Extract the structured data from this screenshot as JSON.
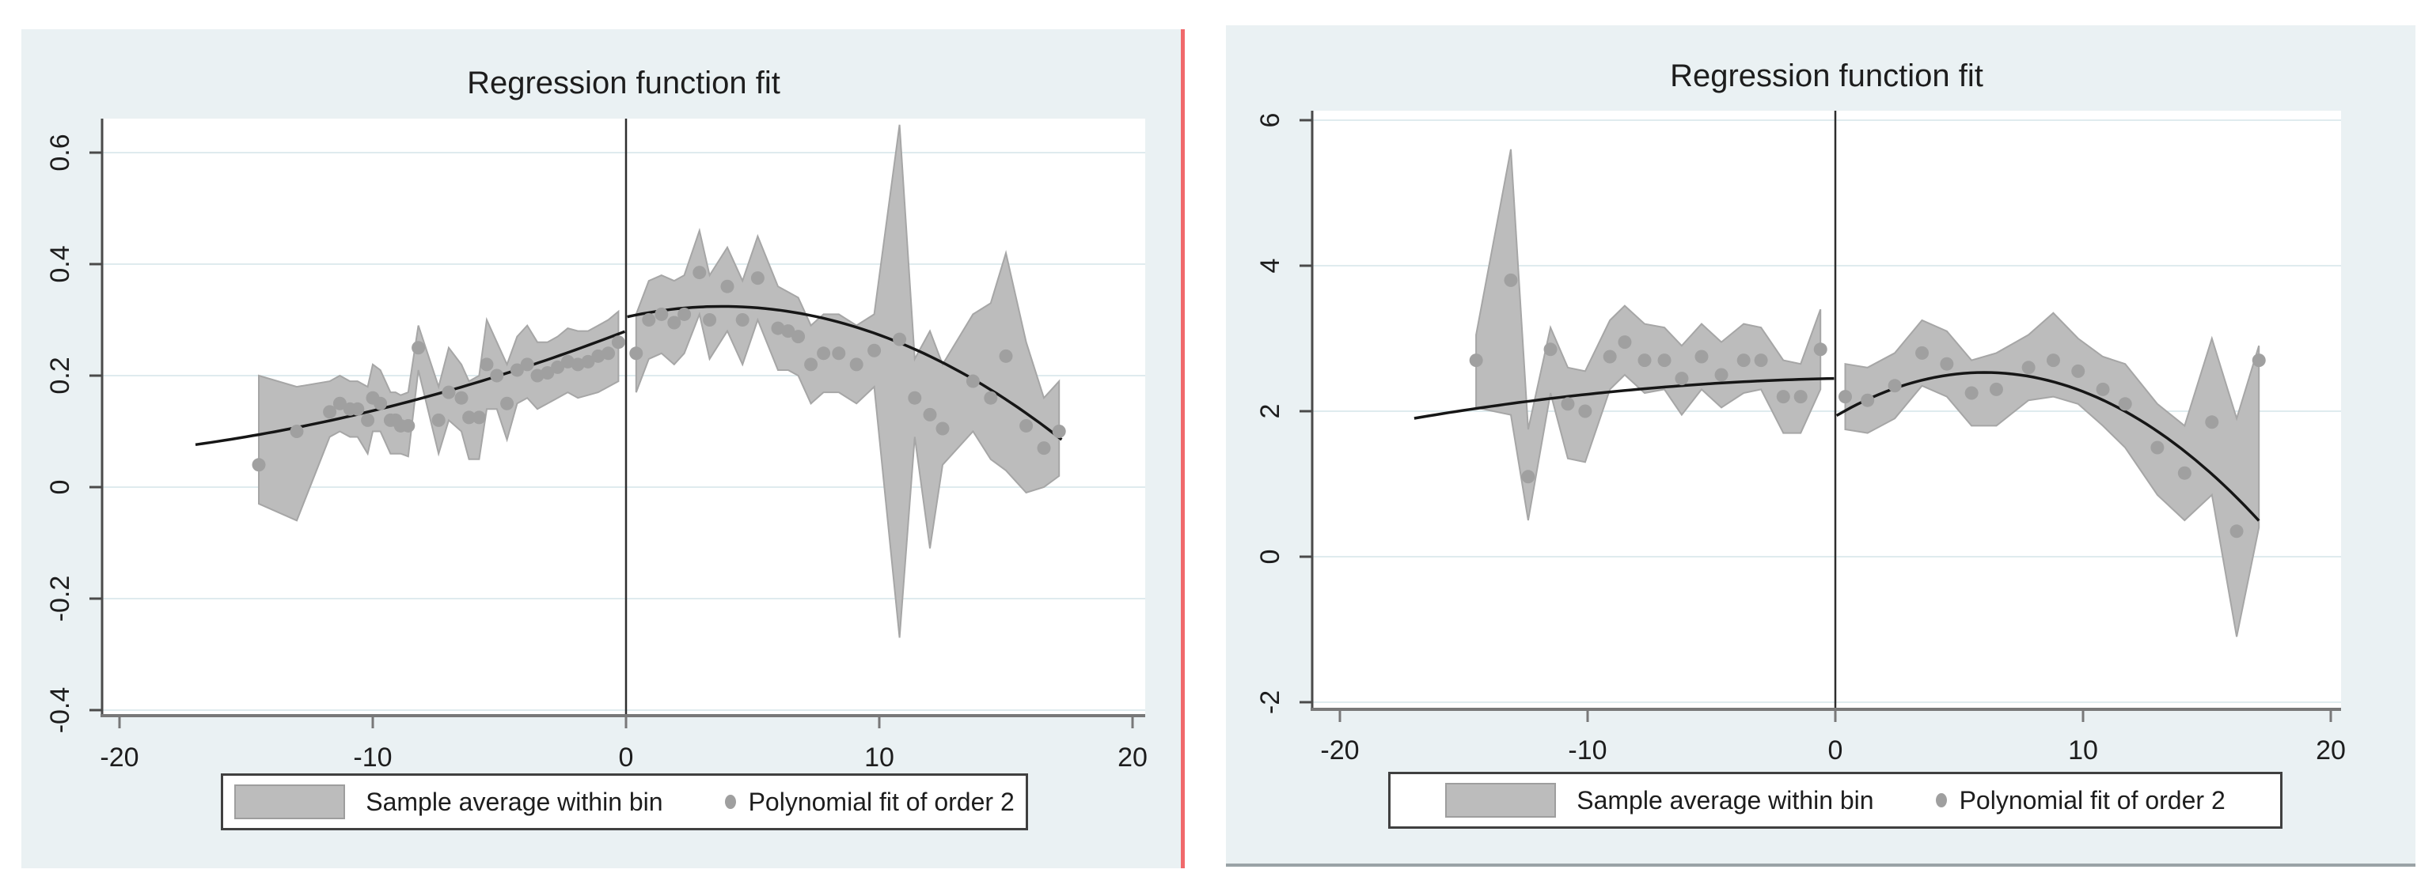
{
  "page": {
    "background": "#ffffff",
    "divider_color": "#f0696b"
  },
  "chart_data": [
    {
      "type": "scatter",
      "variant": "rd-plot-binned-means-with-ci-band-and-quadratic-fit",
      "title": "Regression function fit",
      "xlabel": "",
      "ylabel": "",
      "x_ticks": [
        -20,
        -10,
        0,
        10,
        20
      ],
      "y_ticks": [
        -0.4,
        -0.2,
        0,
        0.2,
        0.4,
        0.6
      ],
      "y_tick_labels": [
        "-0.4",
        "-0.2",
        "0",
        "0.2",
        "0.4",
        "0.6"
      ],
      "xlim": [
        -20.7,
        20.5
      ],
      "ylim": [
        -0.41,
        0.66
      ],
      "cutoff_x": 0,
      "grid": "horizontal",
      "legend_position": "bottom-center",
      "legend": [
        {
          "marker": "area",
          "label": "Sample average within bin"
        },
        {
          "marker": "dot",
          "label": "Polynomial fit of order 2"
        }
      ],
      "colors": {
        "figure_bg": "#eaf1f3",
        "plot_bg": "#ffffff",
        "grid": "#dfebee",
        "band": "#bcbcbc",
        "band_edge": "#a6a6a6",
        "dot": "#a0a0a0",
        "curve": "#161616",
        "cutoff_line": "#2e2e2e",
        "y_axis": "#4a4a4a",
        "x_axis": "#787878",
        "text": "#1d1d1d"
      },
      "bins_left": [
        [
          -14.5,
          0.04,
          -0.03,
          0.2
        ],
        [
          -13.0,
          0.1,
          -0.06,
          0.18
        ],
        [
          -11.7,
          0.135,
          0.09,
          0.19
        ],
        [
          -11.3,
          0.15,
          0.1,
          0.2
        ],
        [
          -10.9,
          0.14,
          0.09,
          0.19
        ],
        [
          -10.6,
          0.14,
          0.09,
          0.19
        ],
        [
          -10.2,
          0.12,
          0.06,
          0.18
        ],
        [
          -10.0,
          0.16,
          0.1,
          0.22
        ],
        [
          -9.7,
          0.15,
          0.1,
          0.21
        ],
        [
          -9.3,
          0.12,
          0.06,
          0.17
        ],
        [
          -9.1,
          0.12,
          0.06,
          0.17
        ],
        [
          -8.9,
          0.11,
          0.06,
          0.165
        ],
        [
          -8.6,
          0.11,
          0.055,
          0.17
        ],
        [
          -8.2,
          0.25,
          0.21,
          0.29
        ],
        [
          -7.4,
          0.12,
          0.06,
          0.18
        ],
        [
          -7.0,
          0.17,
          0.12,
          0.25
        ],
        [
          -6.5,
          0.16,
          0.1,
          0.22
        ],
        [
          -6.2,
          0.125,
          0.05,
          0.19
        ],
        [
          -5.8,
          0.125,
          0.05,
          0.2
        ],
        [
          -5.5,
          0.22,
          0.14,
          0.3
        ],
        [
          -5.1,
          0.2,
          0.14,
          0.26
        ],
        [
          -4.7,
          0.15,
          0.085,
          0.22
        ],
        [
          -4.3,
          0.21,
          0.15,
          0.27
        ],
        [
          -3.9,
          0.22,
          0.16,
          0.29
        ],
        [
          -3.5,
          0.2,
          0.14,
          0.26
        ],
        [
          -3.1,
          0.205,
          0.15,
          0.26
        ],
        [
          -2.7,
          0.215,
          0.16,
          0.27
        ],
        [
          -2.3,
          0.225,
          0.17,
          0.285
        ],
        [
          -1.9,
          0.22,
          0.16,
          0.28
        ],
        [
          -1.5,
          0.225,
          0.165,
          0.28
        ],
        [
          -1.1,
          0.235,
          0.17,
          0.29
        ],
        [
          -0.7,
          0.24,
          0.18,
          0.3
        ],
        [
          -0.3,
          0.26,
          0.19,
          0.315
        ]
      ],
      "bins_right": [
        [
          0.4,
          0.24,
          0.17,
          0.31
        ],
        [
          0.9,
          0.3,
          0.23,
          0.37
        ],
        [
          1.4,
          0.31,
          0.24,
          0.38
        ],
        [
          1.9,
          0.295,
          0.22,
          0.37
        ],
        [
          2.3,
          0.31,
          0.24,
          0.38
        ],
        [
          2.9,
          0.385,
          0.31,
          0.46
        ],
        [
          3.3,
          0.3,
          0.23,
          0.38
        ],
        [
          4.0,
          0.36,
          0.28,
          0.43
        ],
        [
          4.6,
          0.3,
          0.22,
          0.37
        ],
        [
          5.2,
          0.375,
          0.3,
          0.45
        ],
        [
          6.0,
          0.285,
          0.21,
          0.36
        ],
        [
          6.4,
          0.28,
          0.21,
          0.35
        ],
        [
          6.8,
          0.27,
          0.2,
          0.34
        ],
        [
          7.3,
          0.22,
          0.15,
          0.29
        ],
        [
          7.8,
          0.24,
          0.17,
          0.31
        ],
        [
          8.4,
          0.24,
          0.17,
          0.31
        ],
        [
          9.1,
          0.22,
          0.15,
          0.29
        ],
        [
          9.8,
          0.245,
          0.18,
          0.31
        ],
        [
          10.8,
          0.265,
          -0.27,
          0.65
        ],
        [
          11.4,
          0.16,
          0.09,
          0.23
        ],
        [
          12.0,
          0.13,
          -0.11,
          0.28
        ],
        [
          12.5,
          0.105,
          0.04,
          0.22
        ],
        [
          13.7,
          0.19,
          0.1,
          0.31
        ],
        [
          14.4,
          0.16,
          0.05,
          0.33
        ],
        [
          15.0,
          0.235,
          0.03,
          0.42
        ],
        [
          15.8,
          0.11,
          -0.01,
          0.26
        ],
        [
          16.5,
          0.07,
          0.0,
          0.16
        ],
        [
          17.1,
          0.1,
          0.02,
          0.19
        ]
      ],
      "poly_fit_left": {
        "order": 2,
        "a": 0.00033,
        "b": 0.0176,
        "c": 0.28,
        "domain": [
          -17.0,
          -0.05
        ]
      },
      "poly_fit_right": {
        "order": 2,
        "a": -0.00133,
        "b": 0.0101,
        "c": 0.305,
        "domain": [
          0.05,
          17.2
        ]
      }
    },
    {
      "type": "scatter",
      "variant": "rd-plot-binned-means-with-ci-band-and-quadratic-fit",
      "title": "Regression function fit",
      "xlabel": "",
      "ylabel": "",
      "x_ticks": [
        -20,
        -10,
        0,
        10,
        20
      ],
      "y_ticks": [
        -2,
        0,
        2,
        4,
        6
      ],
      "y_tick_labels": [
        "-2",
        "0",
        "2",
        "4",
        "6"
      ],
      "xlim": [
        -21.1,
        20.4
      ],
      "ylim": [
        -2.1,
        6.13
      ],
      "cutoff_x": 0,
      "grid": "horizontal",
      "legend_position": "bottom-center",
      "legend": [
        {
          "marker": "area",
          "label": "Sample average within bin"
        },
        {
          "marker": "dot",
          "label": "Polynomial fit of order 2"
        }
      ],
      "colors": {
        "figure_bg": "#eaf1f3",
        "plot_bg": "#ffffff",
        "grid": "#dfebee",
        "band": "#bcbcbc",
        "band_edge": "#a6a6a6",
        "dot": "#a0a0a0",
        "curve": "#161616",
        "cutoff_line": "#2e2e2e",
        "y_axis": "#4a4a4a",
        "x_axis": "#787878",
        "text": "#1d1d1d"
      },
      "bins_left": [
        [
          -14.5,
          2.7,
          2.05,
          3.05
        ],
        [
          -13.1,
          3.8,
          1.95,
          5.6
        ],
        [
          -12.4,
          1.1,
          0.5,
          1.75
        ],
        [
          -11.5,
          2.85,
          2.25,
          3.15
        ],
        [
          -10.8,
          2.1,
          1.35,
          2.6
        ],
        [
          -10.1,
          2.0,
          1.3,
          2.55
        ],
        [
          -9.1,
          2.75,
          2.3,
          3.25
        ],
        [
          -8.5,
          2.95,
          2.5,
          3.45
        ],
        [
          -7.7,
          2.7,
          2.25,
          3.2
        ],
        [
          -6.9,
          2.7,
          2.3,
          3.15
        ],
        [
          -6.2,
          2.45,
          1.95,
          2.9
        ],
        [
          -5.4,
          2.75,
          2.3,
          3.2
        ],
        [
          -4.6,
          2.5,
          2.05,
          2.95
        ],
        [
          -3.7,
          2.7,
          2.25,
          3.2
        ],
        [
          -3.0,
          2.7,
          2.3,
          3.15
        ],
        [
          -2.1,
          2.2,
          1.7,
          2.7
        ],
        [
          -1.4,
          2.2,
          1.7,
          2.65
        ],
        [
          -0.6,
          2.85,
          2.3,
          3.4
        ]
      ],
      "bins_right": [
        [
          0.4,
          2.2,
          1.75,
          2.65
        ],
        [
          1.3,
          2.15,
          1.7,
          2.6
        ],
        [
          2.4,
          2.35,
          1.9,
          2.8
        ],
        [
          3.5,
          2.8,
          2.35,
          3.25
        ],
        [
          4.5,
          2.65,
          2.2,
          3.1
        ],
        [
          5.5,
          2.25,
          1.8,
          2.7
        ],
        [
          6.5,
          2.3,
          1.8,
          2.8
        ],
        [
          7.8,
          2.6,
          2.15,
          3.05
        ],
        [
          8.8,
          2.7,
          2.2,
          3.35
        ],
        [
          9.8,
          2.55,
          2.1,
          3.0
        ],
        [
          10.8,
          2.3,
          1.8,
          2.75
        ],
        [
          11.7,
          2.1,
          1.5,
          2.65
        ],
        [
          13.0,
          1.5,
          0.85,
          2.1
        ],
        [
          14.1,
          1.15,
          0.5,
          1.8
        ],
        [
          15.2,
          1.85,
          0.85,
          3.0
        ],
        [
          16.2,
          0.35,
          -1.1,
          1.9
        ],
        [
          17.1,
          2.7,
          0.4,
          2.9
        ]
      ],
      "poly_fit_left": {
        "order": 2,
        "a": -0.0015,
        "b": 0.0067,
        "c": 2.45,
        "domain": [
          -17.0,
          -0.05
        ]
      },
      "poly_fit_right": {
        "order": 2,
        "a": -0.0166,
        "b": 0.2,
        "c": 1.93,
        "domain": [
          0.05,
          17.1
        ]
      }
    }
  ]
}
